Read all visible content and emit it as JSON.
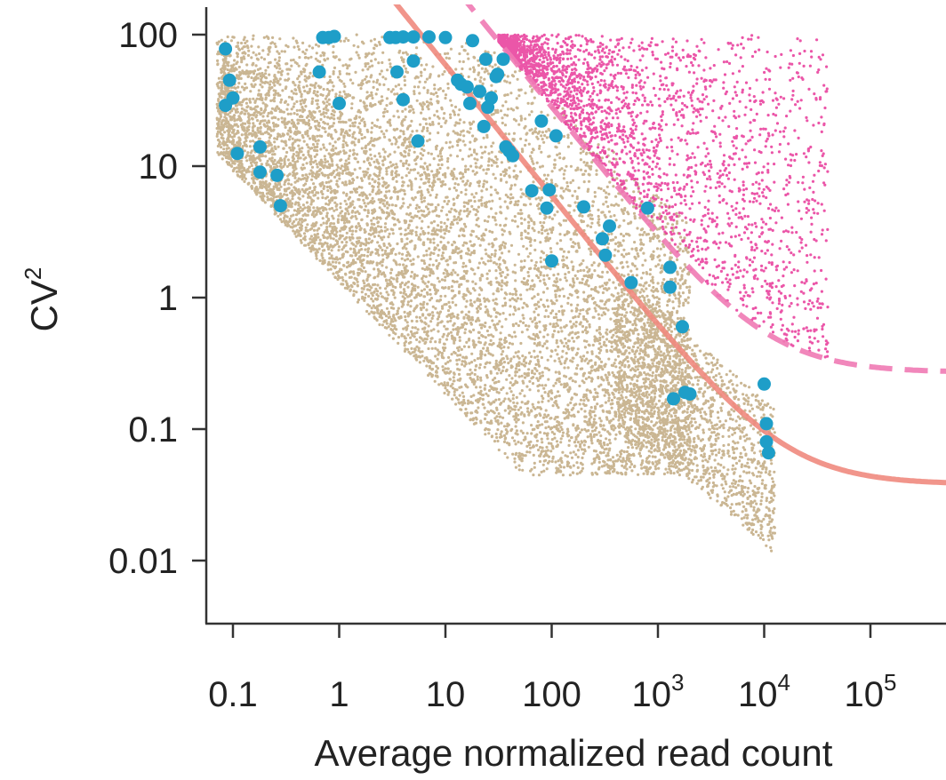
{
  "chart_data": {
    "type": "scatter",
    "title": "",
    "xlabel": "Average normalized read count",
    "ylabel_base": "CV",
    "ylabel_sup": "2",
    "x_scale": "log",
    "y_scale": "log",
    "xlim": [
      0.075,
      1000000
    ],
    "ylim": [
      0.004,
      150
    ],
    "grid": false,
    "legend": "none",
    "x_ticks": [
      {
        "value": 0.1,
        "base": "0.1",
        "sup": ""
      },
      {
        "value": 1,
        "base": "1",
        "sup": ""
      },
      {
        "value": 10,
        "base": "10",
        "sup": ""
      },
      {
        "value": 100,
        "base": "100",
        "sup": ""
      },
      {
        "value": 1000,
        "base": "10",
        "sup": "3"
      },
      {
        "value": 10000,
        "base": "10",
        "sup": "4"
      },
      {
        "value": 100000,
        "base": "10",
        "sup": "5"
      }
    ],
    "y_ticks": [
      {
        "value": 100,
        "label": "100"
      },
      {
        "value": 10,
        "label": "10"
      },
      {
        "value": 1,
        "label": "1"
      },
      {
        "value": 0.1,
        "label": "0.1"
      },
      {
        "value": 0.01,
        "label": "0.01"
      }
    ],
    "colors": {
      "background_genes": "#a07b3c",
      "highly_variable_genes": "#e8399a",
      "highlighted_genes": "#1e9ec8",
      "technical_fit": "#f08a7e",
      "threshold_fit": "#f07ab4"
    },
    "series": [
      {
        "role": "highlighted_genes",
        "points": [
          [
            0.085,
            78
          ],
          [
            0.093,
            45
          ],
          [
            0.1,
            33
          ],
          [
            0.085,
            29
          ],
          [
            0.11,
            12.5
          ],
          [
            0.18,
            14
          ],
          [
            0.18,
            9
          ],
          [
            0.26,
            8.5
          ],
          [
            0.28,
            5
          ],
          [
            0.65,
            52
          ],
          [
            0.7,
            95
          ],
          [
            0.8,
            95
          ],
          [
            0.9,
            97
          ],
          [
            1.0,
            30
          ],
          [
            3,
            95
          ],
          [
            3.4,
            95
          ],
          [
            4,
            96
          ],
          [
            5,
            96
          ],
          [
            7,
            96
          ],
          [
            10,
            95
          ],
          [
            3.5,
            52
          ],
          [
            4,
            32
          ],
          [
            5,
            63
          ],
          [
            5.5,
            15.5
          ],
          [
            13,
            45
          ],
          [
            14,
            42
          ],
          [
            16,
            40
          ],
          [
            17,
            30
          ],
          [
            18,
            90
          ],
          [
            21,
            37
          ],
          [
            23,
            20
          ],
          [
            24,
            65
          ],
          [
            25,
            28
          ],
          [
            27,
            33
          ],
          [
            30,
            48
          ],
          [
            31,
            50
          ],
          [
            35,
            65
          ],
          [
            37,
            14
          ],
          [
            40,
            13
          ],
          [
            43,
            12
          ],
          [
            65,
            6.5
          ],
          [
            80,
            22
          ],
          [
            90,
            4.8
          ],
          [
            95,
            6.6
          ],
          [
            110,
            17
          ],
          [
            100,
            1.9
          ],
          [
            200,
            4.9
          ],
          [
            300,
            2.8
          ],
          [
            320,
            2.1
          ],
          [
            350,
            3.5
          ],
          [
            560,
            1.3
          ],
          [
            800,
            4.8
          ],
          [
            1300,
            1.7
          ],
          [
            1300,
            1.2
          ],
          [
            1700,
            0.6
          ],
          [
            1400,
            0.17
          ],
          [
            1800,
            0.19
          ],
          [
            2000,
            0.185
          ],
          [
            10000,
            0.22
          ],
          [
            10500,
            0.11
          ],
          [
            10500,
            0.08
          ],
          [
            11000,
            0.066
          ]
        ]
      }
    ],
    "curves": [
      {
        "role": "technical_fit",
        "style": "solid",
        "a0": 0.038,
        "a1": 590
      },
      {
        "role": "threshold_fit",
        "style": "dashed",
        "a0": 0.27,
        "a1": 2800
      }
    ]
  }
}
